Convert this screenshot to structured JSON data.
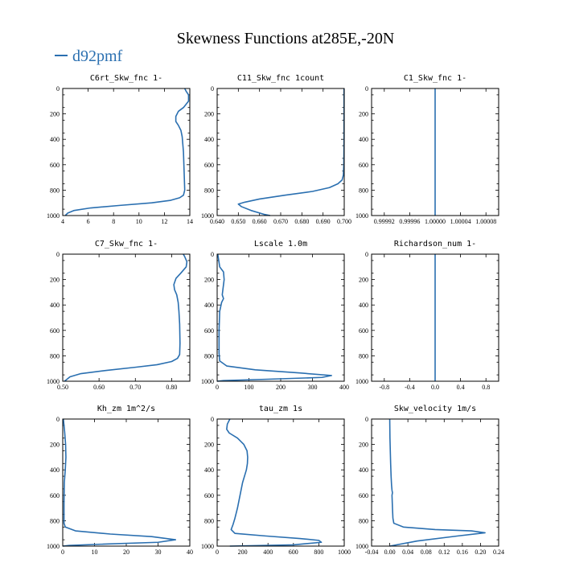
{
  "figure": {
    "title": "Skewness Functions at285E,-20N",
    "legend_label": "d92pmf",
    "colors": {
      "series": "#2a6fb0",
      "axis": "#000000",
      "background": "#ffffff"
    }
  },
  "chart_data": [
    {
      "type": "line",
      "title": "C6rt_Skw_fnc   1-",
      "series_name": "d92pmf",
      "xlim": [
        4,
        14
      ],
      "ylim": [
        0,
        1000
      ],
      "y_inverted": true,
      "xticks": [
        4,
        6,
        8,
        10,
        12,
        14
      ],
      "xticklabels": [
        "4",
        "6",
        "8",
        "10",
        "12",
        "14"
      ],
      "yticks": [
        0,
        200,
        400,
        600,
        800,
        1000
      ],
      "yticklabels": [
        "0",
        "200",
        "400",
        "600",
        "800",
        "1000"
      ],
      "x": [
        13.6,
        13.7,
        13.9,
        13.9,
        13.5,
        13.1,
        12.9,
        12.9,
        13.1,
        13.3,
        13.4,
        13.5,
        13.55,
        13.6,
        13.5,
        13.2,
        12.5,
        11.0,
        8.5,
        6.2,
        4.9,
        4.4,
        4.2
      ],
      "y": [
        0,
        20,
        50,
        100,
        150,
        180,
        220,
        260,
        290,
        330,
        380,
        500,
        650,
        800,
        840,
        860,
        880,
        900,
        920,
        940,
        960,
        980,
        1000
      ]
    },
    {
      "type": "line",
      "title": "C11_Skw_fnc   1count",
      "series_name": "d92pmf",
      "xlim": [
        0.64,
        0.7
      ],
      "ylim": [
        0,
        1000
      ],
      "y_inverted": true,
      "xticks": [
        0.64,
        0.65,
        0.66,
        0.67,
        0.68,
        0.69,
        0.7
      ],
      "xticklabels": [
        "0.640",
        "0.650",
        "0.660",
        "0.670",
        "0.680",
        "0.690",
        "0.700"
      ],
      "yticks": [
        0,
        200,
        400,
        600,
        800,
        1000
      ],
      "yticklabels": [
        "0",
        "200",
        "400",
        "600",
        "800",
        "1000"
      ],
      "x": [
        0.6999,
        0.6999,
        0.6998,
        0.6996,
        0.699,
        0.697,
        0.693,
        0.685,
        0.672,
        0.66,
        0.653,
        0.65,
        0.6515,
        0.656,
        0.662,
        0.665
      ],
      "y": [
        0,
        400,
        600,
        680,
        720,
        750,
        780,
        810,
        840,
        870,
        895,
        910,
        930,
        960,
        990,
        1000
      ]
    },
    {
      "type": "line",
      "title": "C1_Skw_fnc   1-",
      "series_name": "d92pmf",
      "xlim": [
        0.9999,
        1.0001
      ],
      "ylim": [
        0,
        1000
      ],
      "y_inverted": true,
      "xticks": [
        0.99992,
        0.99996,
        1.0,
        1.00004,
        1.00008
      ],
      "xticklabels": [
        "0.99992",
        "0.99996",
        "1.00000",
        "1.00004",
        "1.00008"
      ],
      "yticks": [
        0,
        200,
        400,
        600,
        800,
        1000
      ],
      "yticklabels": [
        "0",
        "200",
        "400",
        "600",
        "800",
        "1000"
      ],
      "x": [
        1.0,
        1.0
      ],
      "y": [
        0,
        1000
      ]
    },
    {
      "type": "line",
      "title": "C7_Skw_fnc   1-",
      "series_name": "d92pmf",
      "xlim": [
        0.5,
        0.85
      ],
      "ylim": [
        0,
        1000
      ],
      "y_inverted": true,
      "xticks": [
        0.5,
        0.6,
        0.7,
        0.8
      ],
      "xticklabels": [
        "0.50",
        "0.60",
        "0.70",
        "0.80"
      ],
      "yticks": [
        0,
        200,
        400,
        600,
        800,
        1000
      ],
      "yticklabels": [
        "0",
        "200",
        "400",
        "600",
        "800",
        "1000"
      ],
      "x": [
        0.832,
        0.836,
        0.842,
        0.84,
        0.825,
        0.812,
        0.806,
        0.808,
        0.814,
        0.818,
        0.82,
        0.822,
        0.823,
        0.822,
        0.816,
        0.8,
        0.76,
        0.7,
        0.62,
        0.55,
        0.52,
        0.505
      ],
      "y": [
        0,
        20,
        60,
        100,
        150,
        190,
        240,
        280,
        320,
        380,
        450,
        550,
        700,
        790,
        820,
        845,
        870,
        890,
        915,
        940,
        965,
        1000
      ]
    },
    {
      "type": "line",
      "title": "Lscale   1.0m",
      "series_name": "d92pmf",
      "xlim": [
        0,
        400
      ],
      "ylim": [
        0,
        1000
      ],
      "y_inverted": true,
      "xticks": [
        0,
        100,
        200,
        300,
        400
      ],
      "xticklabels": [
        "0",
        "100",
        "200",
        "300",
        "400"
      ],
      "yticks": [
        0,
        200,
        400,
        600,
        800,
        1000
      ],
      "yticklabels": [
        "0",
        "200",
        "400",
        "600",
        "800",
        "1000"
      ],
      "x": [
        2,
        5,
        8,
        20,
        22,
        18,
        16,
        20,
        14,
        8,
        6,
        6,
        8,
        30,
        120,
        260,
        360,
        330,
        150,
        20,
        0
      ],
      "y": [
        0,
        50,
        100,
        140,
        200,
        280,
        320,
        350,
        380,
        450,
        600,
        780,
        840,
        880,
        910,
        935,
        955,
        970,
        985,
        995,
        1000
      ]
    },
    {
      "type": "line",
      "title": "Richardson_num   1-",
      "series_name": "d92pmf",
      "xlim": [
        -1.0,
        1.0
      ],
      "ylim": [
        0,
        1000
      ],
      "y_inverted": true,
      "xticks": [
        -0.8,
        -0.4,
        0.0,
        0.4,
        0.8
      ],
      "xticklabels": [
        "-0.8",
        "-0.4",
        "0.0",
        "0.4",
        "0.8"
      ],
      "yticks": [
        0,
        200,
        400,
        600,
        800,
        1000
      ],
      "yticklabels": [
        "0",
        "200",
        "400",
        "600",
        "800",
        "1000"
      ],
      "x": [
        0.0,
        0.0
      ],
      "y": [
        0,
        1000
      ]
    },
    {
      "type": "line",
      "title": "Kh_zm   1m^2/s",
      "series_name": "d92pmf",
      "xlim": [
        0,
        40
      ],
      "ylim": [
        0,
        1000
      ],
      "y_inverted": true,
      "xticks": [
        0,
        10,
        20,
        30,
        40
      ],
      "xticklabels": [
        "0",
        "10",
        "20",
        "30",
        "40"
      ],
      "yticks": [
        0,
        200,
        400,
        600,
        800,
        1000
      ],
      "yticklabels": [
        "0",
        "200",
        "400",
        "600",
        "800",
        "1000"
      ],
      "x": [
        0.2,
        0.6,
        0.9,
        1.0,
        0.8,
        0.5,
        0.4,
        0.4,
        0.8,
        4.0,
        15.0,
        28.0,
        35.5,
        30.0,
        12.0,
        2.0,
        0.0
      ],
      "y": [
        0,
        100,
        200,
        300,
        400,
        500,
        650,
        820,
        850,
        880,
        905,
        925,
        950,
        970,
        985,
        995,
        1000
      ]
    },
    {
      "type": "line",
      "title": "tau_zm   1s",
      "series_name": "d92pmf",
      "xlim": [
        0,
        1000
      ],
      "ylim": [
        0,
        1000
      ],
      "y_inverted": true,
      "xticks": [
        0,
        200,
        400,
        600,
        800,
        1000
      ],
      "xticklabels": [
        "0",
        "200",
        "400",
        "600",
        "800",
        "1000"
      ],
      "yticks": [
        0,
        200,
        400,
        600,
        800,
        1000
      ],
      "yticklabels": [
        "0",
        "200",
        "400",
        "600",
        "800",
        "1000"
      ],
      "x": [
        100,
        80,
        75,
        95,
        160,
        210,
        235,
        240,
        238,
        230,
        200,
        180,
        160,
        140,
        125,
        110,
        140,
        380,
        650,
        800,
        820,
        600,
        100
      ],
      "y": [
        0,
        40,
        80,
        110,
        150,
        200,
        250,
        300,
        350,
        400,
        500,
        600,
        700,
        780,
        830,
        870,
        900,
        920,
        940,
        955,
        970,
        990,
        1000
      ]
    },
    {
      "type": "line",
      "title": "Skw_velocity   1m/s",
      "series_name": "d92pmf",
      "xlim": [
        -0.04,
        0.24
      ],
      "ylim": [
        0,
        1000
      ],
      "y_inverted": true,
      "xticks": [
        -0.04,
        0.0,
        0.04,
        0.08,
        0.12,
        0.16,
        0.2,
        0.24
      ],
      "xticklabels": [
        "-0.04",
        "0.00",
        "0.04",
        "0.08",
        "0.12",
        "0.16",
        "0.20",
        "0.24"
      ],
      "yticks": [
        0,
        200,
        400,
        600,
        800,
        1000
      ],
      "yticklabels": [
        "0",
        "200",
        "400",
        "600",
        "800",
        "1000"
      ],
      "x": [
        0.0,
        0.0005,
        0.002,
        0.003,
        0.004,
        0.005,
        0.006,
        0.005,
        0.006,
        0.007,
        0.009,
        0.03,
        0.1,
        0.18,
        0.21,
        0.15,
        0.06,
        0.0
      ],
      "y": [
        0,
        150,
        350,
        450,
        520,
        560,
        580,
        600,
        700,
        780,
        820,
        850,
        870,
        880,
        895,
        920,
        960,
        1000
      ]
    }
  ]
}
